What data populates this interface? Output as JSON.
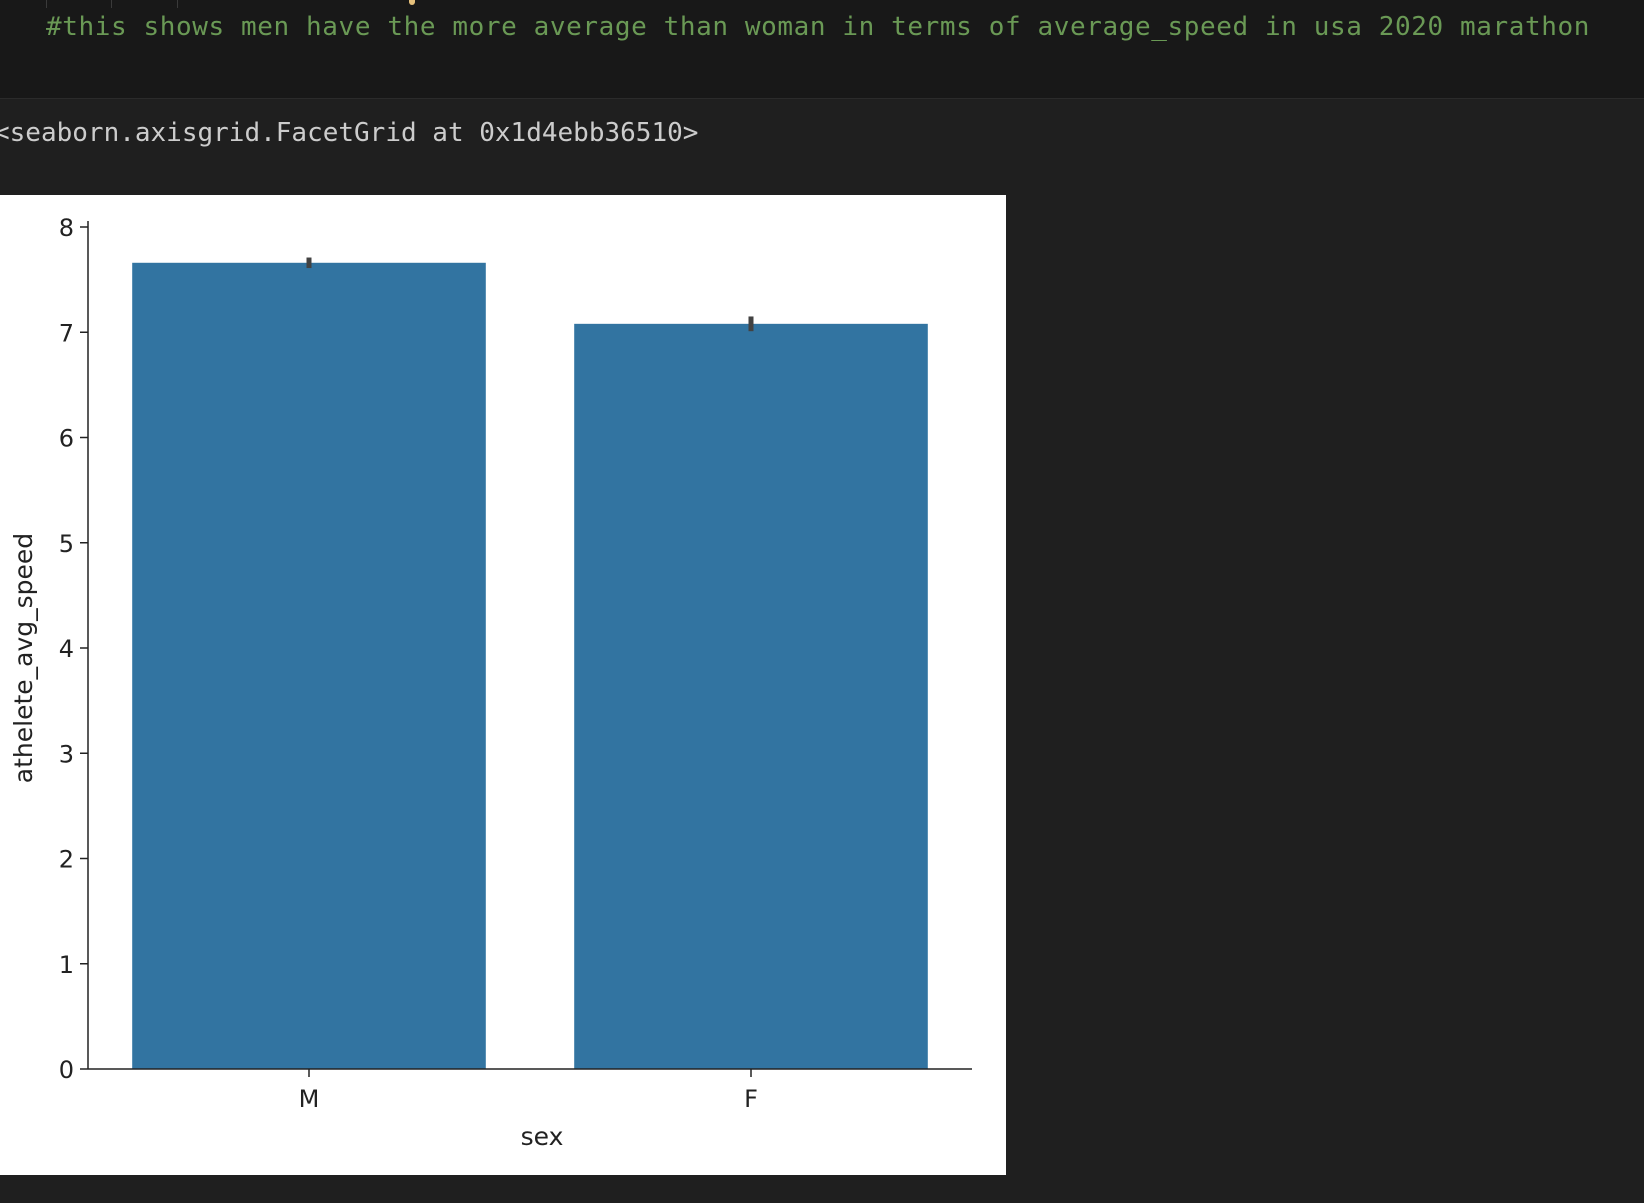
{
  "code_cell": {
    "comment": "#this shows men have the more average than woman in terms of average_speed in usa 2020 marathon"
  },
  "output": {
    "repr_text": "<seaborn.axisgrid.FacetGrid at 0x1d4ebb36510>"
  },
  "chart_data": {
    "type": "bar",
    "categories": [
      "M",
      "F"
    ],
    "values": [
      7.66,
      7.08
    ],
    "error_bars": [
      {
        "low": 7.61,
        "high": 7.71
      },
      {
        "low": 7.01,
        "high": 7.15
      }
    ],
    "xlabel": "sex",
    "ylabel": "athelete_avg_speed",
    "ylim": [
      0,
      8
    ],
    "yticks": [
      0,
      1,
      2,
      3,
      4,
      5,
      6,
      7,
      8
    ],
    "bar_color": "#3274a1",
    "errorbar_color": "#424242",
    "grid": false
  }
}
